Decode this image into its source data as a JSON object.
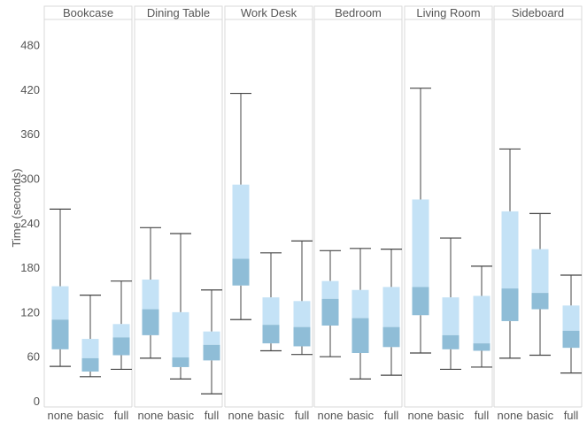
{
  "chart_data": {
    "type": "boxplot",
    "ylabel": "Time (seconds)",
    "ylim": [
      -10,
      530
    ],
    "yticks": [
      0,
      60,
      120,
      180,
      240,
      300,
      360,
      420,
      480
    ],
    "categories": [
      "none",
      "basic",
      "full"
    ],
    "facets": [
      {
        "title": "Bookcase",
        "boxes": [
          {
            "category": "none",
            "min": 47,
            "q1": 70,
            "median": 110,
            "q3": 155,
            "max": 259
          },
          {
            "category": "basic",
            "min": 33,
            "q1": 40,
            "median": 58,
            "q3": 84,
            "max": 143
          },
          {
            "category": "full",
            "min": 43,
            "q1": 62,
            "median": 86,
            "q3": 104,
            "max": 162
          }
        ]
      },
      {
        "title": "Dining Table",
        "boxes": [
          {
            "category": "none",
            "min": 58,
            "q1": 89,
            "median": 124,
            "q3": 164,
            "max": 234
          },
          {
            "category": "basic",
            "min": 30,
            "q1": 46,
            "median": 59,
            "q3": 120,
            "max": 226
          },
          {
            "category": "full",
            "min": 10,
            "q1": 55,
            "median": 76,
            "q3": 94,
            "max": 150
          }
        ]
      },
      {
        "title": "Work Desk",
        "boxes": [
          {
            "category": "none",
            "min": 110,
            "q1": 156,
            "median": 192,
            "q3": 292,
            "max": 415
          },
          {
            "category": "basic",
            "min": 68,
            "q1": 78,
            "median": 103,
            "q3": 140,
            "max": 200
          },
          {
            "category": "full",
            "min": 63,
            "q1": 74,
            "median": 100,
            "q3": 135,
            "max": 216
          }
        ]
      },
      {
        "title": "Bedroom",
        "boxes": [
          {
            "category": "none",
            "min": 60,
            "q1": 102,
            "median": 138,
            "q3": 162,
            "max": 203
          },
          {
            "category": "basic",
            "min": 30,
            "q1": 65,
            "median": 112,
            "q3": 150,
            "max": 206
          },
          {
            "category": "full",
            "min": 35,
            "q1": 73,
            "median": 100,
            "q3": 154,
            "max": 205
          }
        ]
      },
      {
        "title": "Living Room",
        "boxes": [
          {
            "category": "none",
            "min": 65,
            "q1": 116,
            "median": 154,
            "q3": 272,
            "max": 422
          },
          {
            "category": "basic",
            "min": 43,
            "q1": 70,
            "median": 89,
            "q3": 140,
            "max": 220
          },
          {
            "category": "full",
            "min": 46,
            "q1": 68,
            "median": 78,
            "q3": 142,
            "max": 182
          }
        ]
      },
      {
        "title": "Sideboard",
        "boxes": [
          {
            "category": "none",
            "min": 58,
            "q1": 108,
            "median": 152,
            "q3": 256,
            "max": 340
          },
          {
            "category": "basic",
            "min": 62,
            "q1": 124,
            "median": 146,
            "q3": 205,
            "max": 253
          },
          {
            "category": "full",
            "min": 38,
            "q1": 72,
            "median": 95,
            "q3": 129,
            "max": 170
          }
        ]
      }
    ],
    "colors": {
      "box_upper": "#c4e2f6",
      "box_lower": "#8fbdd7",
      "whisker": "#444444",
      "grid": "#d9d9d9",
      "text": "#555555"
    }
  }
}
